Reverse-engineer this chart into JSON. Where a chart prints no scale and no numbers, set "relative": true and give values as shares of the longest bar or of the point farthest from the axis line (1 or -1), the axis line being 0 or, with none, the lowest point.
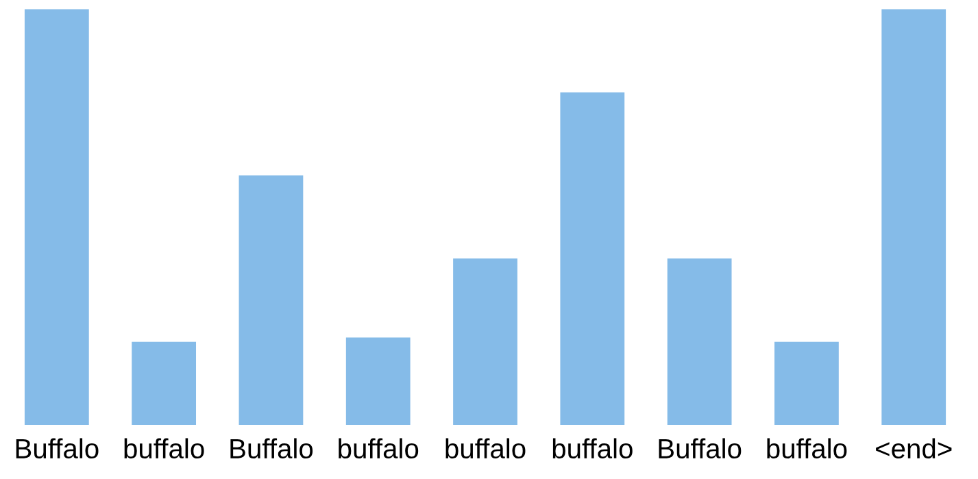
{
  "chart_data": {
    "type": "bar",
    "relative": true,
    "categories": [
      "Buffalo",
      "buffalo",
      "Buffalo",
      "buffalo",
      "buffalo",
      "buffalo",
      "Buffalo",
      "buffalo",
      "<end>"
    ],
    "values": [
      1.0,
      0.2,
      0.6,
      0.21,
      0.4,
      0.8,
      0.4,
      0.2,
      1.0
    ],
    "color": "#85bbe8"
  }
}
